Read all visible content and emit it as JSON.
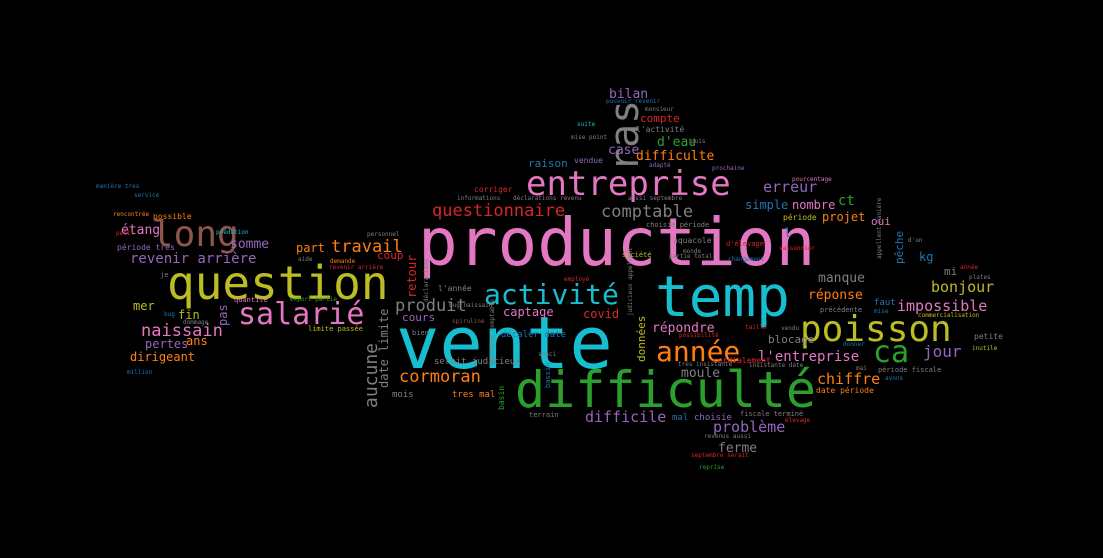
{
  "palette": {
    "pink": "#e377c2",
    "cyan": "#17becf",
    "green": "#2ca02c",
    "olive": "#bcbd22",
    "orange": "#ff7f0e",
    "purple": "#9467bd",
    "blue": "#1f77b4",
    "brown": "#8c564b",
    "red": "#d62728",
    "gray": "#7f7f7f"
  },
  "words": [
    {
      "text": "production",
      "color": "pink"
    },
    {
      "text": "vente",
      "color": "cyan"
    },
    {
      "text": "temp",
      "color": "cyan"
    },
    {
      "text": "difficulté",
      "color": "green"
    },
    {
      "text": "question",
      "color": "olive"
    },
    {
      "text": "entreprise",
      "color": "pink"
    },
    {
      "text": "poisson",
      "color": "olive"
    },
    {
      "text": "ras",
      "color": "gray"
    },
    {
      "text": "long",
      "color": "brown"
    },
    {
      "text": "activité",
      "color": "cyan"
    },
    {
      "text": "salarié",
      "color": "pink"
    },
    {
      "text": "année",
      "color": "orange"
    },
    {
      "text": "ca",
      "color": "green"
    },
    {
      "text": "questionnaire",
      "color": "red"
    },
    {
      "text": "comptable",
      "color": "gray"
    },
    {
      "text": "erreur",
      "color": "purple"
    },
    {
      "text": "cormoran",
      "color": "orange"
    },
    {
      "text": "naissain",
      "color": "pink"
    },
    {
      "text": "produit",
      "color": "gray"
    },
    {
      "text": "aucune",
      "color": "gray"
    },
    {
      "text": "travail",
      "color": "orange"
    },
    {
      "text": "jour",
      "color": "purple"
    },
    {
      "text": "bonjour",
      "color": "olive"
    },
    {
      "text": "impossible",
      "color": "pink"
    },
    {
      "text": "problème",
      "color": "purple"
    },
    {
      "text": "chiffre",
      "color": "orange"
    },
    {
      "text": "difficile",
      "color": "purple"
    },
    {
      "text": "revenir arrière",
      "color": "purple"
    },
    {
      "text": "somme",
      "color": "purple"
    },
    {
      "text": "étang",
      "color": "pink"
    },
    {
      "text": "difficulte",
      "color": "orange"
    },
    {
      "text": "bilan",
      "color": "purple"
    },
    {
      "text": "case",
      "color": "purple"
    },
    {
      "text": "d'eau",
      "color": "green"
    },
    {
      "text": "compte",
      "color": "red"
    },
    {
      "text": "raison",
      "color": "blue"
    },
    {
      "text": "l'entreprise",
      "color": "pink"
    },
    {
      "text": "moule",
      "color": "gray"
    },
    {
      "text": "répondre",
      "color": "pink"
    },
    {
      "text": "ferme",
      "color": "gray"
    },
    {
      "text": "réponse",
      "color": "orange"
    },
    {
      "text": "manque",
      "color": "gray"
    },
    {
      "text": "blocage",
      "color": "gray"
    },
    {
      "text": "nombre",
      "color": "pink"
    },
    {
      "text": "projet",
      "color": "orange"
    },
    {
      "text": "simple",
      "color": "blue"
    },
    {
      "text": "ct",
      "color": "green"
    },
    {
      "text": "covid",
      "color": "red"
    },
    {
      "text": "captage",
      "color": "pink"
    },
    {
      "text": "cours",
      "color": "purple"
    },
    {
      "text": "mer",
      "color": "olive"
    },
    {
      "text": "fin",
      "color": "olive"
    },
    {
      "text": "pertes",
      "color": "purple"
    },
    {
      "text": "ans",
      "color": "orange"
    },
    {
      "text": "dirigeant",
      "color": "orange"
    },
    {
      "text": "pas",
      "color": "purple"
    },
    {
      "text": "part",
      "color": "orange"
    },
    {
      "text": "coup",
      "color": "red"
    },
    {
      "text": "retour",
      "color": "red"
    },
    {
      "text": "date limite",
      "color": "gray"
    },
    {
      "text": "kg",
      "color": "blue"
    },
    {
      "text": "pêche",
      "color": "blue"
    },
    {
      "text": "données",
      "color": "olive"
    },
    {
      "text": "mi",
      "color": "gray"
    },
    {
      "text": "oui",
      "color": "pink"
    },
    {
      "text": "l",
      "color": "blue"
    },
    {
      "text": "faut",
      "color": "blue"
    },
    {
      "text": "mois",
      "color": "gray"
    },
    {
      "text": "tres mal",
      "color": "orange"
    },
    {
      "text": "période très",
      "color": "purple"
    },
    {
      "text": "possible",
      "color": "orange"
    },
    {
      "text": "décaler date",
      "color": "blue"
    },
    {
      "text": "serait judicieux",
      "color": "gray"
    },
    {
      "text": "mal",
      "color": "blue"
    },
    {
      "text": "choisie",
      "color": "purple"
    },
    {
      "text": "date période",
      "color": "orange"
    },
    {
      "text": "aquacole",
      "color": "gray"
    },
    {
      "text": "cordialement",
      "color": "red"
    },
    {
      "text": "période",
      "color": "olive"
    },
    {
      "text": "corriger",
      "color": "red"
    },
    {
      "text": "vendue",
      "color": "purple"
    },
    {
      "text": "l'activité",
      "color": "gray"
    },
    {
      "text": "informations",
      "color": "gray"
    },
    {
      "text": "déclarations revenu",
      "color": "gray"
    },
    {
      "text": "aussi septembre",
      "color": "gray"
    },
    {
      "text": "adapté",
      "color": "purple"
    },
    {
      "text": "société",
      "color": "olive"
    },
    {
      "text": "l'année",
      "color": "gray"
    },
    {
      "text": "basin",
      "color": "green"
    },
    {
      "text": "terrain",
      "color": "gray"
    },
    {
      "text": "quantité",
      "color": "pink"
    },
    {
      "text": "limite passée",
      "color": "olive"
    },
    {
      "text": "rencontrée",
      "color": "orange"
    },
    {
      "text": "manière tres",
      "color": "blue"
    },
    {
      "text": "service",
      "color": "blue"
    },
    {
      "text": "prédation",
      "color": "cyan"
    },
    {
      "text": "million",
      "color": "blue"
    },
    {
      "text": "petit",
      "color": "red"
    },
    {
      "text": "aide",
      "color": "gray"
    },
    {
      "text": "demande",
      "color": "orange"
    },
    {
      "text": "revenir arrière",
      "color": "red"
    },
    {
      "text": "export partie",
      "color": "green"
    },
    {
      "text": "dommage",
      "color": "gray"
    },
    {
      "text": "bug",
      "color": "blue"
    },
    {
      "text": "personnel",
      "color": "gray"
    },
    {
      "text": "suite",
      "color": "cyan"
    },
    {
      "text": "mise point",
      "color": "gray"
    },
    {
      "text": "pouvoir revenir",
      "color": "blue"
    },
    {
      "text": "bug naissain",
      "color": "gray"
    },
    {
      "text": "prochaine",
      "color": "purple"
    },
    {
      "text": "pourcentage",
      "color": "pink"
    },
    {
      "text": "choisie période",
      "color": "gray"
    },
    {
      "text": "d'élevage",
      "color": "red"
    },
    {
      "text": "partie total",
      "color": "gray"
    },
    {
      "text": "changement",
      "color": "blue"
    },
    {
      "text": "saisonnier",
      "color": "red"
    },
    {
      "text": "employé",
      "color": "red"
    },
    {
      "text": "judicieux appellent",
      "color": "gray"
    },
    {
      "text": "taille",
      "color": "red"
    },
    {
      "text": "vendu",
      "color": "gray"
    },
    {
      "text": "précédente",
      "color": "gray"
    },
    {
      "text": "très insistante",
      "color": "gray"
    },
    {
      "text": "insistante date",
      "color": "gray"
    },
    {
      "text": "mai",
      "color": "gray"
    },
    {
      "text": "fiscale terminé",
      "color": "gray"
    },
    {
      "text": "élevage",
      "color": "red"
    },
    {
      "text": "revenus aussi",
      "color": "gray"
    },
    {
      "text": "septembre serait",
      "color": "red"
    },
    {
      "text": "reprise",
      "color": "green"
    },
    {
      "text": "monde",
      "color": "gray"
    },
    {
      "text": "souci",
      "color": "gray"
    },
    {
      "text": "période fiscale",
      "color": "gray"
    },
    {
      "text": "avons",
      "color": "blue"
    },
    {
      "text": "donner",
      "color": "blue"
    },
    {
      "text": "mise",
      "color": "blue"
    },
    {
      "text": "commercialisation",
      "color": "olive"
    },
    {
      "text": "petite",
      "color": "gray"
    },
    {
      "text": "inutile",
      "color": "olive"
    },
    {
      "text": "année",
      "color": "red"
    },
    {
      "text": "plates",
      "color": "gray"
    },
    {
      "text": "d'un",
      "color": "gray"
    },
    {
      "text": "appellent manière",
      "color": "gray"
    },
    {
      "text": "monsieur",
      "color": "gray"
    },
    {
      "text": "puis",
      "color": "gray"
    },
    {
      "text": "exercice comptable",
      "color": "gray"
    },
    {
      "text": "spiruline",
      "color": "brown"
    },
    {
      "text": "déclarations",
      "color": "gray"
    },
    {
      "text": "possibilité",
      "color": "red"
    },
    {
      "text": "je",
      "color": "gray"
    },
    {
      "text": "bassin",
      "color": "blue"
    },
    {
      "text": "bien",
      "color": "gray"
    }
  ]
}
